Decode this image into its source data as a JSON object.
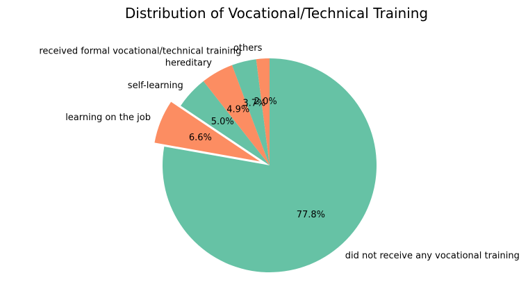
{
  "chart_data": {
    "type": "pie",
    "title": "Distribution of Vocational/Technical Training",
    "slices": [
      {
        "label": "did not receive any vocational training",
        "value": 77.8,
        "pct_label": "77.8%",
        "color": "#66c2a5",
        "explode": false
      },
      {
        "label": "learning on the job",
        "value": 6.6,
        "pct_label": "6.6%",
        "color": "#fc8d62",
        "explode": true
      },
      {
        "label": "self-learning",
        "value": 5.0,
        "pct_label": "5.0%",
        "color": "#66c2a5",
        "explode": false
      },
      {
        "label": "hereditary",
        "value": 4.9,
        "pct_label": "4.9%",
        "color": "#fc8d62",
        "explode": false
      },
      {
        "label": "received formal vocational/technical training",
        "value": 3.7,
        "pct_label": "3.7%",
        "color": "#66c2a5",
        "explode": false
      },
      {
        "label": "others",
        "value": 2.0,
        "pct_label": "2.0%",
        "color": "#fc8d62",
        "explode": false
      }
    ],
    "start_angle_deg": 90,
    "direction": "clockwise"
  }
}
